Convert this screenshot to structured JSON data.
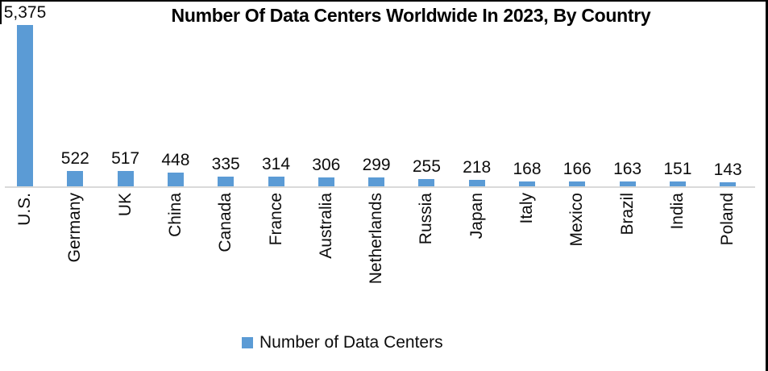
{
  "title": "Number Of Data Centers Worldwide In 2023, By Country",
  "legend": {
    "label": "Number of Data Centers",
    "swatch_color": "#5B9BD5"
  },
  "colors": {
    "bar": "#5B9BD5",
    "axis_line": "#D9D9D9",
    "text": "#0d0d0d",
    "frame_border": "#000000"
  },
  "chart_data": {
    "type": "bar",
    "title": "Number Of Data Centers Worldwide In 2023, By Country",
    "categories": [
      "U.S.",
      "Germany",
      "UK",
      "China",
      "Canada",
      "France",
      "Australia",
      "Netherlands",
      "Russia",
      "Japan",
      "Italy",
      "Mexico",
      "Brazil",
      "India",
      "Poland"
    ],
    "values": [
      5375,
      522,
      517,
      448,
      335,
      314,
      306,
      299,
      255,
      218,
      168,
      166,
      163,
      151,
      143
    ],
    "value_labels": [
      "5,375",
      "522",
      "517",
      "448",
      "335",
      "314",
      "306",
      "299",
      "255",
      "218",
      "168",
      "166",
      "163",
      "151",
      "143"
    ],
    "series": [
      {
        "name": "Number of Data Centers",
        "values": [
          5375,
          522,
          517,
          448,
          335,
          314,
          306,
          299,
          255,
          218,
          168,
          166,
          163,
          151,
          143
        ]
      }
    ],
    "xlabel": "",
    "ylabel": "",
    "ylim": [
      0,
      5375
    ],
    "grid": false,
    "y_axis_visible": false,
    "data_labels": "outside-end",
    "category_label_rotation_deg": 90,
    "legend_position": "bottom",
    "bar_color": "#5B9BD5"
  }
}
